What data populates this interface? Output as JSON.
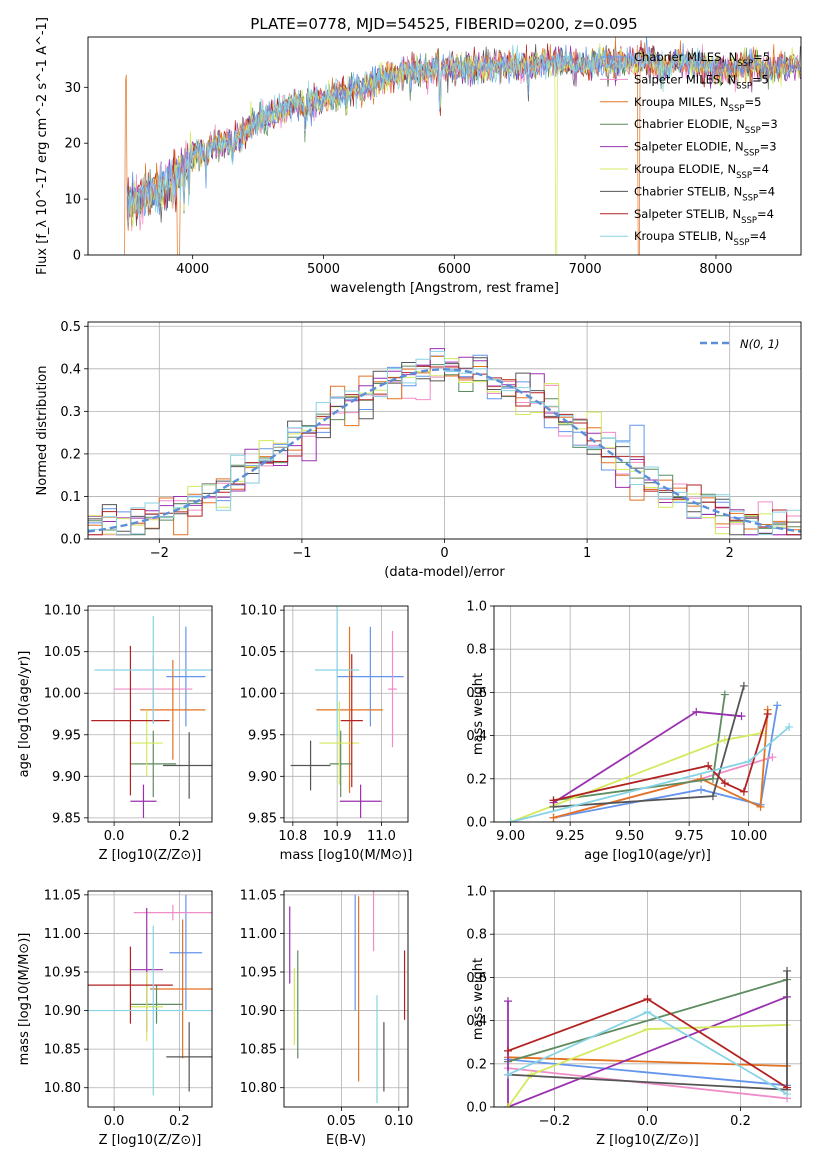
{
  "title": "PLATE=0778, MJD=54525, FIBERID=0200, z=0.095",
  "palette": [
    "#6495ED",
    "#F08CC8",
    "#E37222",
    "#5E8C5F",
    "#9A30B0",
    "#D4E95E",
    "#555555",
    "#B22222",
    "#87D3E4"
  ],
  "chart_data": [
    {
      "id": "spectrum",
      "type": "line",
      "xlabel": "wavelength [Angstrom, rest frame]",
      "ylabel": "Flux [f_λ 10^-17 erg cm^-2 s^-1 A^-1]",
      "xlim": [
        3200,
        8650
      ],
      "ylim": [
        0,
        39
      ],
      "xticks": [
        4000,
        5000,
        6000,
        7000,
        8000
      ],
      "yticks": [
        0,
        10,
        20,
        30
      ],
      "grid": false,
      "legend_position": "right",
      "series": [
        {
          "name": "Chabrier MILES, N_SSP=5",
          "color_index": 0
        },
        {
          "name": "Salpeter MILES, N_SSP=5",
          "color_index": 1
        },
        {
          "name": "Kroupa MILES, N_SSP=5",
          "color_index": 2
        },
        {
          "name": "Chabrier ELODIE, N_SSP=3",
          "color_index": 3
        },
        {
          "name": "Salpeter ELODIE, N_SSP=3",
          "color_index": 4
        },
        {
          "name": "Kroupa ELODIE, N_SSP=4",
          "color_index": 5
        },
        {
          "name": "Chabrier STELIB, N_SSP=4",
          "color_index": 6
        },
        {
          "name": "Salpeter STELIB, N_SSP=4",
          "color_index": 7
        },
        {
          "name": "Kroupa STELIB, N_SSP=4",
          "color_index": 8
        }
      ],
      "continuum": [
        [
          3500,
          9
        ],
        [
          3600,
          10
        ],
        [
          3700,
          11
        ],
        [
          3800,
          12
        ],
        [
          3900,
          15
        ],
        [
          4000,
          18
        ],
        [
          4100,
          19
        ],
        [
          4200,
          20
        ],
        [
          4300,
          20
        ],
        [
          4400,
          22
        ],
        [
          4500,
          24
        ],
        [
          4600,
          25
        ],
        [
          4700,
          26
        ],
        [
          4800,
          27
        ],
        [
          4900,
          27
        ],
        [
          5000,
          28
        ],
        [
          5100,
          28.5
        ],
        [
          5200,
          29.5
        ],
        [
          5300,
          30
        ],
        [
          5400,
          31
        ],
        [
          5500,
          32
        ],
        [
          5600,
          32.5
        ],
        [
          5700,
          33
        ],
        [
          5800,
          33
        ],
        [
          5900,
          33.5
        ],
        [
          6000,
          33.5
        ],
        [
          6100,
          33.5
        ],
        [
          6200,
          33.5
        ],
        [
          6300,
          34
        ],
        [
          6400,
          34
        ],
        [
          6500,
          34
        ],
        [
          6600,
          34
        ],
        [
          6700,
          34.5
        ],
        [
          6800,
          34.5
        ],
        [
          6900,
          34
        ],
        [
          7000,
          34
        ],
        [
          7100,
          34.5
        ],
        [
          7200,
          34.5
        ],
        [
          7300,
          34
        ],
        [
          7400,
          35
        ],
        [
          7500,
          35
        ],
        [
          7600,
          33
        ],
        [
          7700,
          35
        ],
        [
          7800,
          34
        ],
        [
          7900,
          34
        ],
        [
          8000,
          33
        ],
        [
          8100,
          33
        ],
        [
          8200,
          34
        ],
        [
          8300,
          34
        ],
        [
          8400,
          33
        ],
        [
          8500,
          34
        ],
        [
          8600,
          34
        ],
        [
          8650,
          33
        ]
      ],
      "absorption_dips": [
        [
          3934,
          5
        ],
        [
          3969,
          5
        ],
        [
          4102,
          4
        ],
        [
          4304,
          3
        ],
        [
          4861,
          4
        ],
        [
          5175,
          3
        ],
        [
          5890,
          8
        ],
        [
          6563,
          5
        ]
      ]
    },
    {
      "id": "residuals",
      "type": "histogram",
      "xlabel": "(data-model)/error",
      "ylabel": "Normed distribution",
      "xlim": [
        -2.5,
        2.5
      ],
      "ylim": [
        0,
        0.51
      ],
      "xticks": [
        -2,
        -1,
        0,
        1,
        2
      ],
      "yticks": [
        0.0,
        0.1,
        0.2,
        0.3,
        0.4,
        0.5
      ],
      "grid": true,
      "legend_position": "top-right",
      "legend_label": "N(0, 1)",
      "bins": 50,
      "reference_color": "#5B8FD8"
    },
    {
      "id": "age-vs-z",
      "type": "errorbar",
      "xlabel": "Z [log10(Z/Z⊙)]",
      "ylabel": "age  [log10(age/yr)]",
      "xlim": [
        -0.08,
        0.3
      ],
      "ylim": [
        9.845,
        10.105
      ],
      "xticks": [
        0.0,
        0.2
      ],
      "yticks": [
        9.85,
        9.9,
        9.95,
        10.0,
        10.05,
        10.1
      ],
      "grid": true,
      "points": [
        {
          "c": 0,
          "x": 0.22,
          "y": 10.02,
          "ex": 0.06,
          "ey": 0.06
        },
        {
          "c": 1,
          "x": 0.12,
          "y": 10.005,
          "ex": 0.12,
          "ey": 0.04
        },
        {
          "c": 2,
          "x": 0.18,
          "y": 9.98,
          "ex": 0.1,
          "ey": 0.06
        },
        {
          "c": 3,
          "x": 0.12,
          "y": 9.915,
          "ex": 0.07,
          "ey": 0.04
        },
        {
          "c": 4,
          "x": 0.09,
          "y": 9.87,
          "ex": 0.04,
          "ey": 0.02
        },
        {
          "c": 5,
          "x": 0.1,
          "y": 9.94,
          "ex": 0.05,
          "ey": 0.04
        },
        {
          "c": 6,
          "x": 0.23,
          "y": 9.913,
          "ex": 0.08,
          "ey": 0.04
        },
        {
          "c": 7,
          "x": 0.05,
          "y": 9.967,
          "ex": 0.12,
          "ey": 0.09
        },
        {
          "c": 8,
          "x": 0.12,
          "y": 10.028,
          "ex": 0.18,
          "ey": 0.065
        }
      ]
    },
    {
      "id": "age-vs-mass",
      "type": "errorbar",
      "xlabel": "mass [log10(M/M⊙)]",
      "ylabel": "",
      "xlim": [
        10.78,
        11.06
      ],
      "ylim": [
        9.845,
        10.105
      ],
      "xticks": [
        10.8,
        10.9,
        11.0
      ],
      "yticks": [
        9.85,
        9.9,
        9.95,
        10.0,
        10.05,
        10.1
      ],
      "grid": true,
      "points": [
        {
          "c": 0,
          "x": 10.975,
          "y": 10.02,
          "ex": 0.075,
          "ey": 0.06
        },
        {
          "c": 1,
          "x": 11.025,
          "y": 10.005,
          "ex": 0.01,
          "ey": 0.07
        },
        {
          "c": 2,
          "x": 10.928,
          "y": 9.98,
          "ex": 0.075,
          "ey": 0.1
        },
        {
          "c": 3,
          "x": 10.908,
          "y": 9.915,
          "ex": 0.025,
          "ey": 0.04
        },
        {
          "c": 4,
          "x": 10.953,
          "y": 9.87,
          "ex": 0.047,
          "ey": 0.02
        },
        {
          "c": 5,
          "x": 10.905,
          "y": 9.94,
          "ex": 0.045,
          "ey": 0.05
        },
        {
          "c": 6,
          "x": 10.84,
          "y": 9.913,
          "ex": 0.045,
          "ey": 0.03
        },
        {
          "c": 7,
          "x": 10.933,
          "y": 9.967,
          "ex": 0.025,
          "ey": 0.08
        },
        {
          "c": 8,
          "x": 10.9,
          "y": 10.028,
          "ex": 0.05,
          "ey": 0.08
        }
      ]
    },
    {
      "id": "weight-vs-age",
      "type": "line",
      "xlabel": "age  [log10(age/yr)]",
      "ylabel": "mass weight",
      "xlim": [
        8.93,
        10.22
      ],
      "ylim": [
        0,
        1
      ],
      "xticks": [
        9.0,
        9.25,
        9.5,
        9.75,
        10.0
      ],
      "yticks": [
        0.0,
        0.2,
        0.4,
        0.6,
        0.8,
        1.0
      ],
      "grid": true,
      "series": [
        {
          "c": 0,
          "points": [
            [
              9.18,
              0.02
            ],
            [
              9.8,
              0.15
            ],
            [
              10.05,
              0.08
            ],
            [
              10.12,
              0.54
            ]
          ]
        },
        {
          "c": 1,
          "points": [
            [
              9.18,
              0.02
            ],
            [
              9.8,
              0.2
            ],
            [
              10.1,
              0.3
            ]
          ]
        },
        {
          "c": 2,
          "points": [
            [
              9.18,
              0.02
            ],
            [
              9.8,
              0.2
            ],
            [
              10.05,
              0.07
            ],
            [
              10.08,
              0.52
            ]
          ]
        },
        {
          "c": 3,
          "points": [
            [
              9.18,
              0.1
            ],
            [
              9.85,
              0.2
            ],
            [
              9.9,
              0.59
            ]
          ]
        },
        {
          "c": 4,
          "points": [
            [
              9.18,
              0.09
            ],
            [
              9.78,
              0.51
            ],
            [
              9.97,
              0.49
            ]
          ]
        },
        {
          "c": 5,
          "points": [
            [
              9.0,
              0.0
            ],
            [
              9.9,
              0.38
            ],
            [
              10.05,
              0.41
            ]
          ]
        },
        {
          "c": 6,
          "points": [
            [
              9.18,
              0.07
            ],
            [
              9.85,
              0.12
            ],
            [
              9.98,
              0.63
            ]
          ]
        },
        {
          "c": 7,
          "points": [
            [
              9.18,
              0.1
            ],
            [
              9.83,
              0.26
            ],
            [
              9.9,
              0.18
            ],
            [
              9.98,
              0.14
            ],
            [
              10.08,
              0.5
            ]
          ]
        },
        {
          "c": 8,
          "points": [
            [
              9.0,
              0.0
            ],
            [
              10.0,
              0.28
            ],
            [
              10.17,
              0.44
            ]
          ]
        }
      ]
    },
    {
      "id": "mass-vs-z",
      "type": "errorbar",
      "xlabel": "Z [log10(Z/Z⊙)]",
      "ylabel": "mass [log10(M/M⊙)]",
      "xlim": [
        -0.08,
        0.3
      ],
      "ylim": [
        10.775,
        11.055
      ],
      "xticks": [
        0.0,
        0.2
      ],
      "yticks": [
        10.8,
        10.85,
        10.9,
        10.95,
        11.0,
        11.05
      ],
      "grid": true,
      "points": [
        {
          "c": 0,
          "x": 0.22,
          "y": 10.975,
          "ex": 0.05,
          "ey": 0.075
        },
        {
          "c": 1,
          "x": 0.18,
          "y": 11.027,
          "ex": 0.12,
          "ey": 0.01
        },
        {
          "c": 2,
          "x": 0.21,
          "y": 10.928,
          "ex": 0.1,
          "ey": 0.09
        },
        {
          "c": 3,
          "x": 0.13,
          "y": 10.908,
          "ex": 0.08,
          "ey": 0.025
        },
        {
          "c": 4,
          "x": 0.1,
          "y": 10.953,
          "ex": 0.05,
          "ey": 0.08
        },
        {
          "c": 5,
          "x": 0.1,
          "y": 10.905,
          "ex": 0.05,
          "ey": 0.045
        },
        {
          "c": 6,
          "x": 0.23,
          "y": 10.84,
          "ex": 0.07,
          "ey": 0.045
        },
        {
          "c": 7,
          "x": 0.05,
          "y": 10.933,
          "ex": 0.13,
          "ey": 0.05
        },
        {
          "c": 8,
          "x": 0.12,
          "y": 10.9,
          "ex": 0.3,
          "ey": 0.11
        }
      ]
    },
    {
      "id": "mass-vs-ebv",
      "type": "errorbar",
      "xlabel": "E(B-V)",
      "ylabel": "",
      "xlim": [
        0.0,
        0.108
      ],
      "ylim": [
        10.775,
        11.055
      ],
      "xticks": [
        0.05,
        0.1
      ],
      "yticks": [
        10.8,
        10.85,
        10.9,
        10.95,
        11.0,
        11.05
      ],
      "grid": true,
      "points": [
        {
          "c": 0,
          "x": 0.062,
          "y": 10.975,
          "ex": 0.0,
          "ey": 0.075
        },
        {
          "c": 1,
          "x": 0.078,
          "y": 11.027,
          "ex": 0.0,
          "ey": 0.05
        },
        {
          "c": 2,
          "x": 0.065,
          "y": 10.928,
          "ex": 0.0,
          "ey": 0.12
        },
        {
          "c": 3,
          "x": 0.012,
          "y": 10.908,
          "ex": 0.0,
          "ey": 0.07
        },
        {
          "c": 4,
          "x": 0.005,
          "y": 10.985,
          "ex": 0.0,
          "ey": 0.05
        },
        {
          "c": 5,
          "x": 0.009,
          "y": 10.905,
          "ex": 0.0,
          "ey": 0.05
        },
        {
          "c": 6,
          "x": 0.087,
          "y": 10.84,
          "ex": 0.0,
          "ey": 0.045
        },
        {
          "c": 7,
          "x": 0.105,
          "y": 10.933,
          "ex": 0.0,
          "ey": 0.045
        },
        {
          "c": 8,
          "x": 0.081,
          "y": 10.85,
          "ex": 0.0,
          "ey": 0.07
        }
      ]
    },
    {
      "id": "weight-vs-z",
      "type": "line",
      "xlabel": "Z [log10(Z/Z⊙)]",
      "ylabel": "mass weight",
      "xlim": [
        -0.33,
        0.33
      ],
      "ylim": [
        0,
        1
      ],
      "xticks": [
        -0.2,
        0.0,
        0.2
      ],
      "yticks": [
        0.0,
        0.2,
        0.4,
        0.6,
        0.8,
        1.0
      ],
      "grid": true,
      "series": [
        {
          "c": 0,
          "points": [
            [
              -0.3,
              0.22
            ],
            [
              0.3,
              0.1
            ]
          ]
        },
        {
          "c": 1,
          "points": [
            [
              -0.3,
              0.18
            ],
            [
              0.3,
              0.04
            ]
          ]
        },
        {
          "c": 2,
          "points": [
            [
              -0.3,
              0.23
            ],
            [
              0.3,
              0.19
            ]
          ]
        },
        {
          "c": 3,
          "points": [
            [
              -0.3,
              0.21
            ],
            [
              0.3,
              0.59
            ]
          ]
        },
        {
          "c": 4,
          "points": [
            [
              -0.3,
              0.49
            ],
            [
              -0.3,
              0.0
            ],
            [
              0.3,
              0.51
            ]
          ]
        },
        {
          "c": 5,
          "points": [
            [
              -0.3,
              0.0
            ],
            [
              -0.25,
              0.15
            ],
            [
              0.0,
              0.36
            ],
            [
              0.3,
              0.38
            ]
          ]
        },
        {
          "c": 6,
          "points": [
            [
              -0.3,
              0.15
            ],
            [
              0.3,
              0.08
            ],
            [
              0.3,
              0.63
            ]
          ]
        },
        {
          "c": 7,
          "points": [
            [
              -0.3,
              0.26
            ],
            [
              0.0,
              0.5
            ],
            [
              0.3,
              0.09
            ]
          ]
        },
        {
          "c": 8,
          "points": [
            [
              -0.3,
              0.15
            ],
            [
              0.0,
              0.44
            ],
            [
              0.3,
              0.06
            ]
          ]
        }
      ]
    }
  ]
}
